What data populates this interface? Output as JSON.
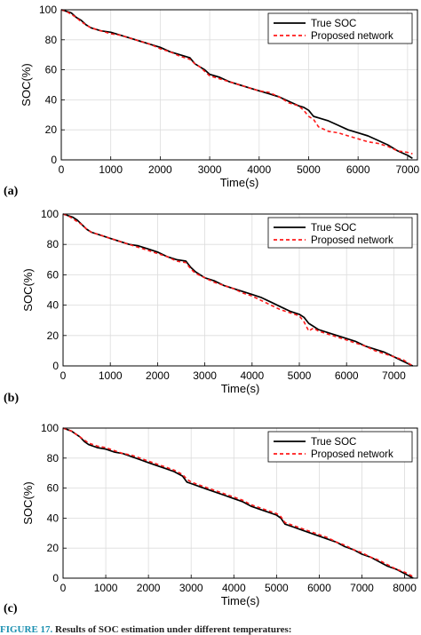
{
  "chart_data": [
    {
      "type": "line",
      "panel_label": "(a)",
      "xlabel": "Time(s)",
      "ylabel": "SOC(%)",
      "xlim": [
        0,
        7200
      ],
      "ylim": [
        0,
        100
      ],
      "xticks": [
        0,
        1000,
        2000,
        3000,
        4000,
        5000,
        6000,
        7000
      ],
      "yticks": [
        0,
        20,
        40,
        60,
        80,
        100
      ],
      "grid": true,
      "legend_position": "top-right",
      "series": [
        {
          "name": "True SOC",
          "color": "#000000",
          "style": "solid",
          "x": [
            0,
            100,
            200,
            300,
            400,
            500,
            600,
            800,
            1000,
            1200,
            1400,
            1600,
            1800,
            2000,
            2200,
            2400,
            2600,
            2700,
            2800,
            2900,
            3000,
            3200,
            3400,
            3600,
            3800,
            4000,
            4200,
            4400,
            4600,
            4800,
            4900,
            5000,
            5100,
            5200,
            5400,
            5600,
            5800,
            6000,
            6200,
            6400,
            6600,
            6800,
            7000,
            7100
          ],
          "y": [
            100,
            99,
            98,
            95,
            93,
            90,
            88,
            86,
            85,
            83,
            81,
            79,
            77,
            75,
            72,
            70,
            68,
            64,
            62,
            60,
            57,
            55,
            52,
            50,
            48,
            46,
            44,
            42,
            39,
            36,
            35,
            33,
            29,
            28,
            26,
            23,
            20,
            18,
            16,
            13,
            10,
            6,
            3,
            1
          ]
        },
        {
          "name": "Proposed network",
          "color": "#ff1a1a",
          "style": "dashed",
          "x": [
            0,
            100,
            200,
            300,
            400,
            500,
            600,
            800,
            1000,
            1200,
            1400,
            1600,
            1800,
            2000,
            2200,
            2400,
            2600,
            2700,
            2800,
            2900,
            3000,
            3200,
            3400,
            3600,
            3800,
            4000,
            4200,
            4400,
            4600,
            4800,
            4900,
            5000,
            5100,
            5200,
            5400,
            5600,
            5800,
            6000,
            6200,
            6400,
            6600,
            6800,
            7000,
            7100
          ],
          "y": [
            100,
            99,
            97,
            95,
            92,
            90,
            88,
            86,
            84,
            83,
            81,
            79,
            77,
            74,
            72,
            69,
            67,
            64,
            62,
            59,
            56,
            54,
            52,
            50,
            48,
            46,
            45,
            42,
            38,
            36,
            33,
            29,
            27,
            22,
            19,
            18,
            16,
            14,
            12,
            11,
            9,
            6,
            5,
            4
          ]
        }
      ]
    },
    {
      "type": "line",
      "panel_label": "(b)",
      "xlabel": "Time(s)",
      "ylabel": "SOC(%)",
      "xlim": [
        0,
        7500
      ],
      "ylim": [
        0,
        100
      ],
      "xticks": [
        0,
        1000,
        2000,
        3000,
        4000,
        5000,
        6000,
        7000
      ],
      "yticks": [
        0,
        20,
        40,
        60,
        80,
        100
      ],
      "grid": true,
      "legend_position": "top-right",
      "series": [
        {
          "name": "True SOC",
          "color": "#000000",
          "style": "solid",
          "x": [
            0,
            100,
            200,
            300,
            400,
            500,
            600,
            800,
            1000,
            1200,
            1400,
            1600,
            1800,
            2000,
            2200,
            2400,
            2600,
            2700,
            2800,
            3000,
            3200,
            3400,
            3600,
            3800,
            4000,
            4200,
            4400,
            4600,
            4800,
            5000,
            5100,
            5200,
            5300,
            5400,
            5600,
            5800,
            6000,
            6200,
            6400,
            6600,
            6800,
            7000,
            7200,
            7400
          ],
          "y": [
            100,
            99,
            98,
            96,
            93,
            90,
            88,
            86,
            84,
            82,
            80,
            79,
            77,
            75,
            72,
            70,
            69,
            65,
            62,
            58,
            56,
            53,
            51,
            49,
            47,
            45,
            42,
            39,
            36,
            34,
            32,
            28,
            26,
            24,
            22,
            20,
            18,
            16,
            13,
            11,
            9,
            6,
            3,
            0
          ]
        },
        {
          "name": "Proposed network",
          "color": "#ff1a1a",
          "style": "dashed",
          "x": [
            0,
            100,
            200,
            300,
            400,
            500,
            600,
            800,
            1000,
            1200,
            1400,
            1600,
            1800,
            2000,
            2200,
            2400,
            2600,
            2700,
            2800,
            3000,
            3200,
            3400,
            3600,
            3800,
            4000,
            4200,
            4400,
            4600,
            4800,
            5000,
            5100,
            5200,
            5300,
            5400,
            5600,
            5800,
            6000,
            6200,
            6400,
            6600,
            6800,
            7000,
            7200,
            7400
          ],
          "y": [
            100,
            99,
            97,
            95,
            93,
            90,
            88,
            86,
            84,
            82,
            80,
            78,
            76,
            74,
            72,
            69,
            68,
            64,
            61,
            58,
            55,
            53,
            51,
            48,
            46,
            43,
            40,
            37,
            35,
            33,
            29,
            23,
            25,
            23,
            21,
            19,
            17,
            15,
            13,
            10,
            8,
            6,
            4,
            0
          ]
        }
      ]
    },
    {
      "type": "line",
      "panel_label": "(c)",
      "xlabel": "Time(s)",
      "ylabel": "SOC(%)",
      "xlim": [
        0,
        8300
      ],
      "ylim": [
        0,
        100
      ],
      "xticks": [
        0,
        1000,
        2000,
        3000,
        4000,
        5000,
        6000,
        7000,
        8000
      ],
      "yticks": [
        0,
        20,
        40,
        60,
        80,
        100
      ],
      "grid": true,
      "legend_position": "top-right",
      "series": [
        {
          "name": "True SOC",
          "color": "#000000",
          "style": "solid",
          "x": [
            0,
            100,
            200,
            300,
            400,
            500,
            600,
            800,
            1000,
            1200,
            1400,
            1600,
            1800,
            2000,
            2200,
            2400,
            2600,
            2800,
            2900,
            3000,
            3200,
            3400,
            3600,
            3800,
            4000,
            4200,
            4400,
            4600,
            4800,
            5000,
            5100,
            5200,
            5400,
            5600,
            5800,
            6000,
            6200,
            6400,
            6600,
            6800,
            7000,
            7200,
            7400,
            7600,
            7800,
            8000,
            8200
          ],
          "y": [
            100,
            99,
            98,
            96,
            94,
            91,
            89,
            87,
            86,
            84,
            83,
            81,
            79,
            77,
            75,
            73,
            71,
            68,
            64,
            63,
            61,
            59,
            57,
            55,
            53,
            51,
            48,
            46,
            44,
            42,
            40,
            36,
            34,
            32,
            30,
            28,
            26,
            24,
            21,
            19,
            16,
            14,
            11,
            8,
            6,
            3,
            0
          ]
        },
        {
          "name": "Proposed network",
          "color": "#ff1a1a",
          "style": "dashed",
          "x": [
            0,
            100,
            200,
            300,
            400,
            500,
            600,
            800,
            1000,
            1200,
            1400,
            1600,
            1800,
            2000,
            2200,
            2400,
            2600,
            2800,
            2900,
            3000,
            3200,
            3400,
            3600,
            3800,
            4000,
            4200,
            4400,
            4600,
            4800,
            5000,
            5100,
            5200,
            5400,
            5600,
            5800,
            6000,
            6200,
            6400,
            6600,
            6800,
            7000,
            7200,
            7400,
            7600,
            7800,
            8000,
            8200
          ],
          "y": [
            100,
            99,
            98,
            96,
            94,
            92,
            90,
            88,
            87,
            85,
            83,
            82,
            80,
            78,
            76,
            74,
            72,
            69,
            66,
            64,
            62,
            60,
            58,
            56,
            54,
            52,
            49,
            47,
            45,
            43,
            41,
            37,
            35,
            33,
            31,
            29,
            27,
            24,
            22,
            19,
            17,
            14,
            12,
            9,
            6,
            4,
            1
          ]
        }
      ]
    }
  ],
  "caption": {
    "figure_label": "FIGURE 17.",
    "text": "Results of SOC estimation under different temperatures:"
  }
}
